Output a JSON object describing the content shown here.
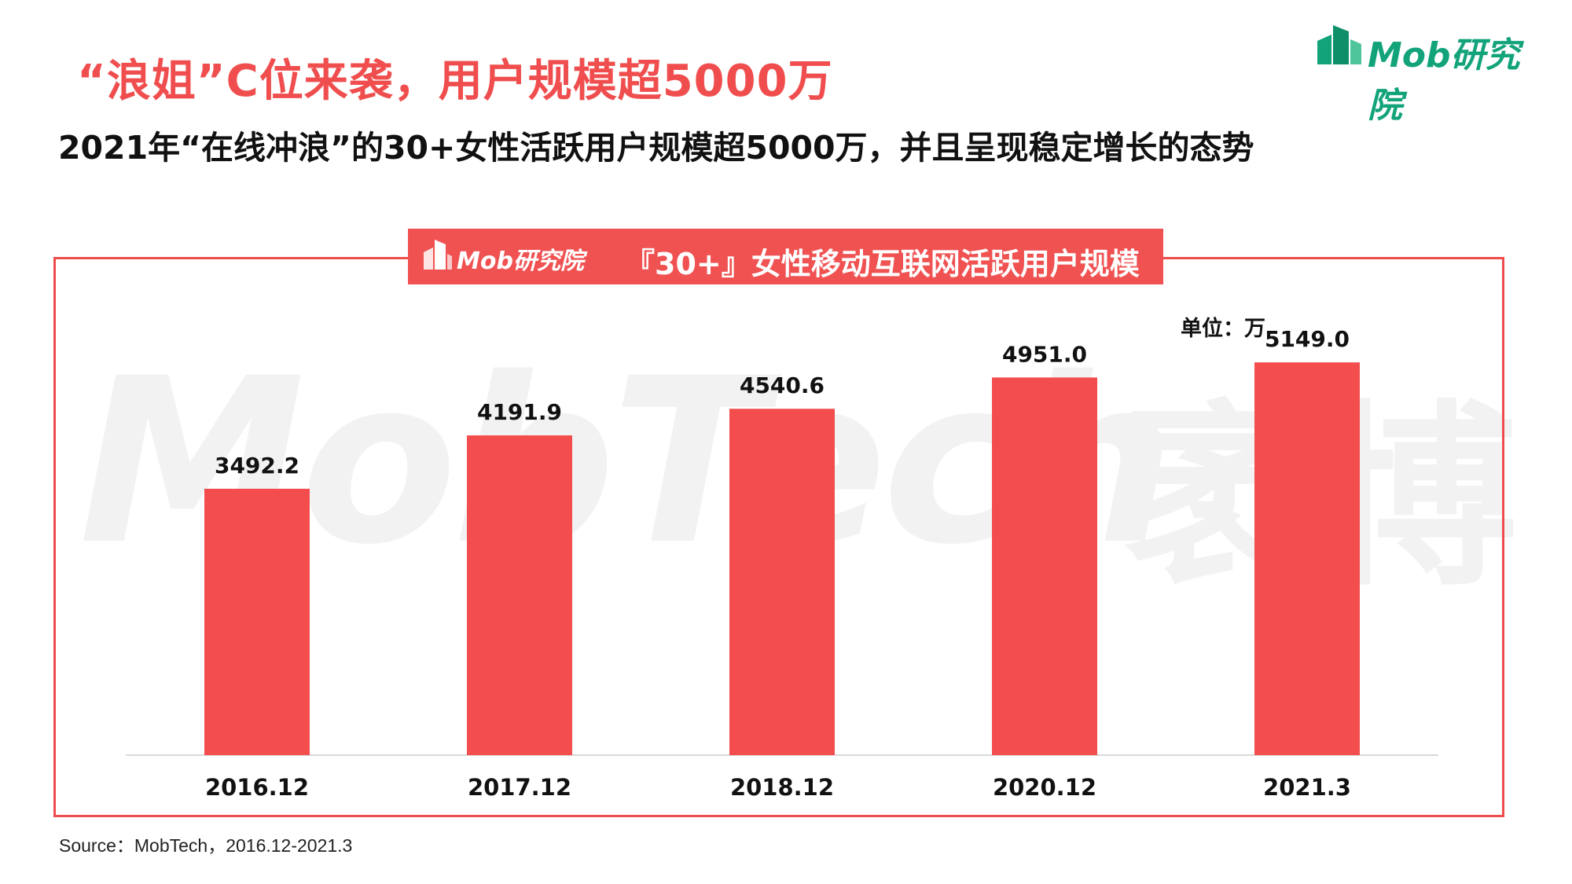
{
  "header": {
    "title": "“浪姐”C位来袭，用户规模超5000万",
    "subtitle": "2021年“在线冲浪”的30+女性活跃用户规模超5000万，并且呈现稳定增长的态势",
    "brand": "Mob研究院"
  },
  "chart_panel": {
    "banner_brand": "Mob研究院",
    "banner_title": "『30+』女性移动互联网活跃用户规模",
    "unit": "单位：万",
    "watermark": "MobTech",
    "watermark_cn": "袤博"
  },
  "chart_data": {
    "type": "bar",
    "title": "『30+』女性移动互联网活跃用户规模",
    "unit": "万",
    "categories": [
      "2016.12",
      "2017.12",
      "2018.12",
      "2020.12",
      "2021.3"
    ],
    "values": [
      3492.2,
      4191.9,
      4540.6,
      4951.0,
      5149.0
    ],
    "value_labels": [
      "3492.2",
      "4191.9",
      "4540.6",
      "4951.0",
      "5149.0"
    ],
    "ylim": [
      0,
      6500
    ],
    "grid": false,
    "legend": "none",
    "bar_color": "#f44d4d"
  },
  "footer": {
    "source": "Source：MobTech，2016.12-2021.3"
  },
  "colors": {
    "accent": "#f04e4e",
    "brand": "#12a37a"
  }
}
